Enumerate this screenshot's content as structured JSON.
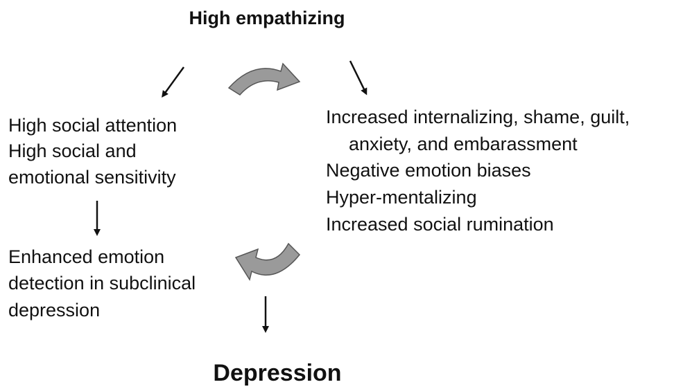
{
  "top": {
    "title": "High empathizing"
  },
  "left_top": {
    "lines": [
      "High social attention",
      "High social and",
      "emotional sensitivity"
    ]
  },
  "right": {
    "lines": [
      "Increased internalizing, shame, guilt,",
      "anxiety, and embarassment",
      "Negative emotion biases",
      "Hyper-mentalizing",
      "Increased social rumination"
    ]
  },
  "left_bottom": {
    "lines": [
      "Enhanced emotion",
      "detection in subclinical",
      "depression"
    ]
  },
  "bottom": {
    "title": "Depression"
  }
}
